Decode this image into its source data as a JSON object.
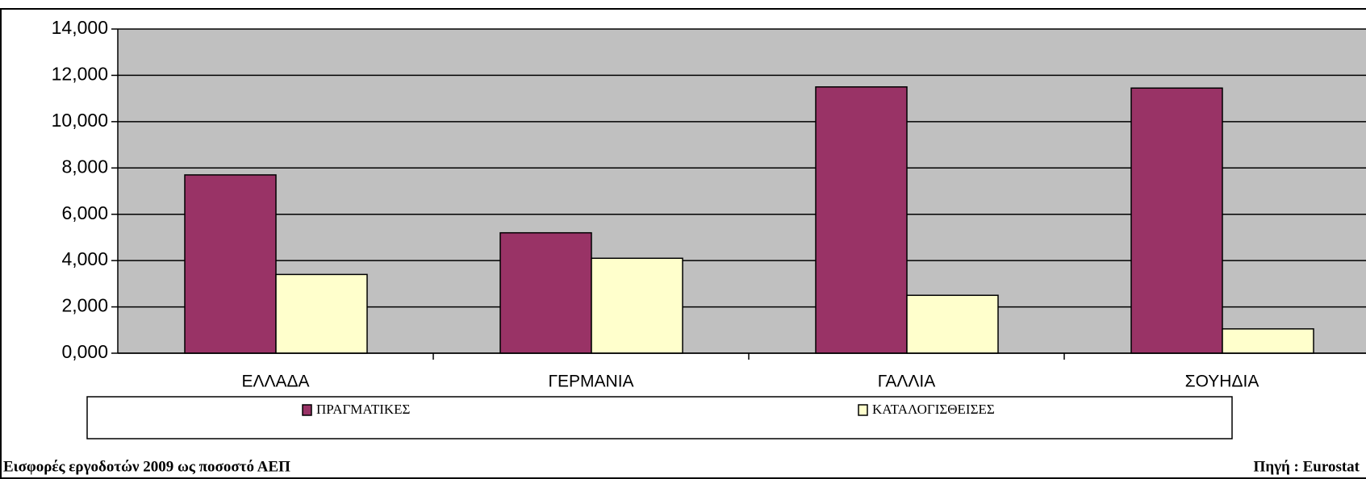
{
  "chart_data": {
    "type": "bar",
    "title": "Εισφορές εργοδοτών  2009 ως ποσοστό ΑΕΠ",
    "source": "Πηγή : Eurostat",
    "categories": [
      "ΕΛΛΑΔΑ",
      "ΓΕΡΜΑΝΙΑ",
      "ΓΑΛΛΙΑ",
      "ΣΟΥΗΔΙΑ"
    ],
    "series": [
      {
        "name": "ΠΡΑΓΜΑΤΙΚΕΣ",
        "color": "#993366",
        "values": [
          7700,
          5200,
          11500,
          11450
        ]
      },
      {
        "name": "ΚΑΤΑΛΟΓΙΣΘΕΙΣΕΣ",
        "color": "#ffffcc",
        "values": [
          3400,
          4100,
          2500,
          1050
        ]
      }
    ],
    "ylim": [
      0,
      14000
    ],
    "yticks": [
      {
        "value": 0,
        "label": "0,000"
      },
      {
        "value": 2000,
        "label": "2,000"
      },
      {
        "value": 4000,
        "label": "4,000"
      },
      {
        "value": 6000,
        "label": "6,000"
      },
      {
        "value": 8000,
        "label": "8,000"
      },
      {
        "value": 10000,
        "label": "10,000"
      },
      {
        "value": 12000,
        "label": "12,000"
      },
      {
        "value": 14000,
        "label": "14,000"
      }
    ],
    "grid": true,
    "plot_background": "#c0c0c0"
  }
}
